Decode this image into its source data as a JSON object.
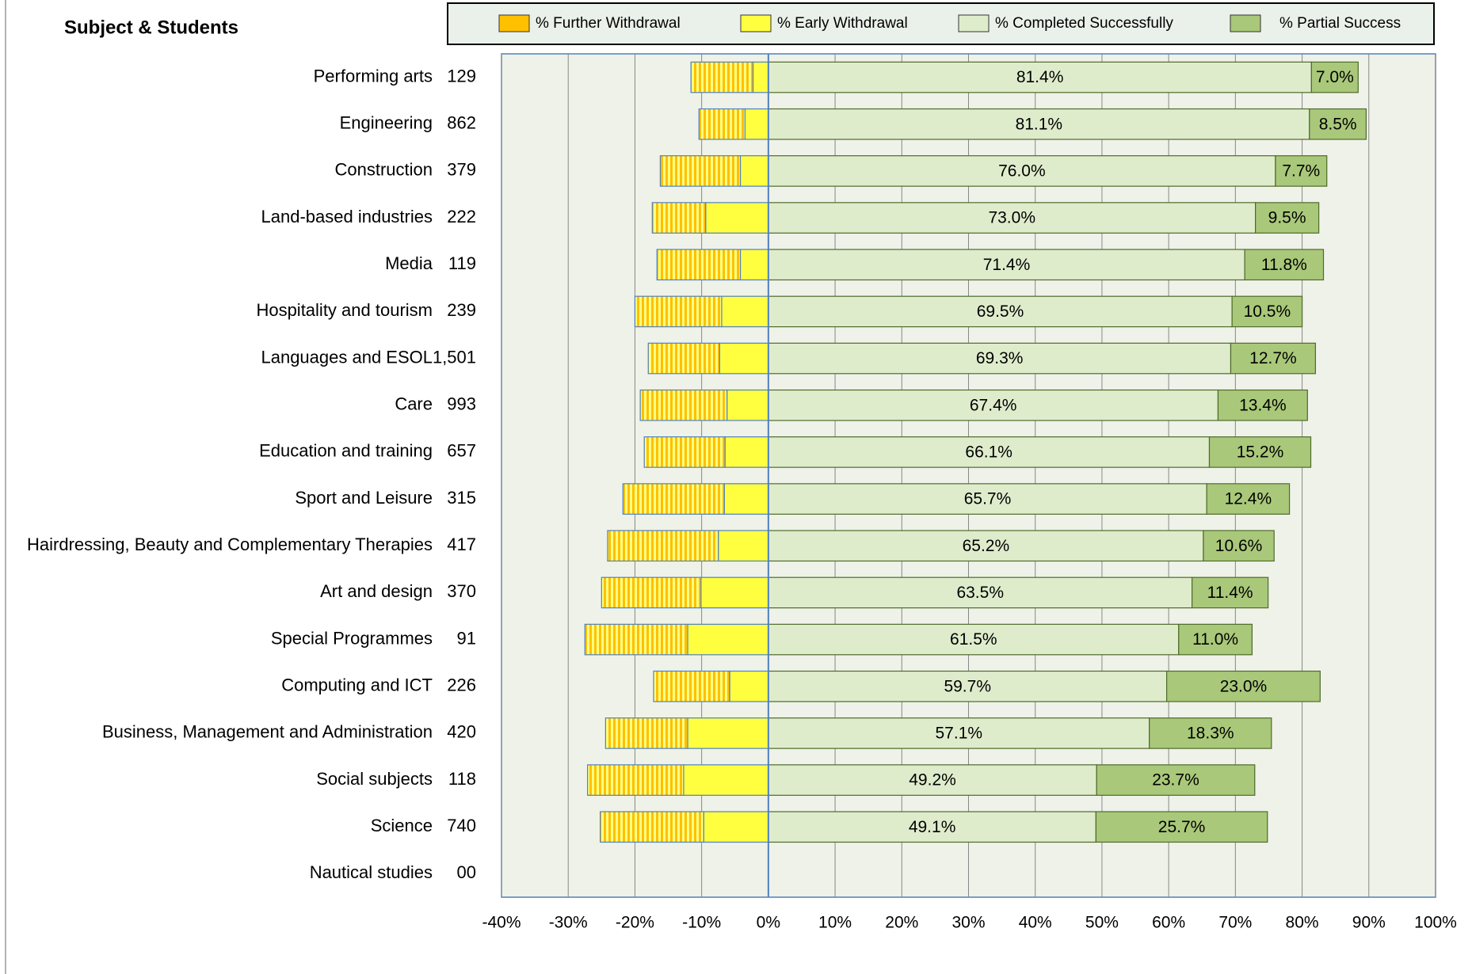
{
  "chart_data": {
    "type": "diverging_stacked_barh",
    "title": "Subject & Students",
    "categories": [
      "Performing arts",
      "Engineering",
      "Construction",
      "Land-based industries",
      "Media",
      "Hospitality and tourism",
      "Languages and ESOL",
      "Care",
      "Education and training",
      "Sport and Leisure",
      "Hairdressing, Beauty and Complementary Therapies",
      "Art and design",
      "Special Programmes",
      "Computing and ICT",
      "Business, Management and Administration",
      "Social subjects",
      "Science",
      "Nautical studies"
    ],
    "students": [
      "129",
      "862",
      "379",
      "222",
      "119",
      "239",
      "1,501",
      "993",
      "657",
      "315",
      "417",
      "370",
      "91",
      "226",
      "420",
      "118",
      "740",
      "00"
    ],
    "series": [
      {
        "name": "% Further Withdrawal",
        "color": "#ffc000",
        "values": [
          -9.3,
          -6.9,
          -12.0,
          -8.0,
          -12.5,
          -13.0,
          -10.7,
          -13.0,
          -12.1,
          -15.2,
          -16.6,
          -14.9,
          -15.4,
          -11.4,
          -12.3,
          -14.4,
          -15.5,
          null
        ]
      },
      {
        "name": "% Early Withdrawal",
        "color": "#ffff40",
        "values": [
          -2.3,
          -3.5,
          -4.2,
          -9.4,
          -4.2,
          -7.0,
          -7.3,
          -6.2,
          -6.5,
          -6.6,
          -7.5,
          -10.1,
          -12.1,
          -5.8,
          -12.1,
          -12.7,
          -9.7,
          null
        ]
      },
      {
        "name": "% Completed Successfully",
        "color": "#dfeccc",
        "values": [
          81.4,
          81.1,
          76.0,
          73.0,
          71.4,
          69.5,
          69.3,
          67.4,
          66.1,
          65.7,
          65.2,
          63.5,
          61.5,
          59.7,
          57.1,
          49.2,
          49.1,
          null
        ],
        "value_labels": [
          "81.4%",
          "81.1%",
          "76.0%",
          "73.0%",
          "71.4%",
          "69.5%",
          "69.3%",
          "67.4%",
          "66.1%",
          "65.7%",
          "65.2%",
          "63.5%",
          "61.5%",
          "59.7%",
          "57.1%",
          "49.2%",
          "49.1%",
          null
        ]
      },
      {
        "name": "% Partial Success",
        "color": "#a9c87a",
        "values": [
          7.0,
          8.5,
          7.7,
          9.5,
          11.8,
          10.5,
          12.7,
          13.4,
          15.2,
          12.4,
          10.6,
          11.4,
          11.0,
          23.0,
          18.3,
          23.7,
          25.7,
          null
        ],
        "value_labels": [
          "7.0%",
          "8.5%",
          "7.7%",
          "9.5%",
          "11.8%",
          "10.5%",
          "12.7%",
          "13.4%",
          "15.2%",
          "12.4%",
          "10.6%",
          "11.4%",
          "11.0%",
          "23.0%",
          "18.3%",
          "23.7%",
          "25.7%",
          null
        ]
      }
    ],
    "xlim": [
      -40,
      100
    ],
    "xticks": [
      {
        "value": -40,
        "label": "-40%"
      },
      {
        "value": -30,
        "label": "-30%"
      },
      {
        "value": -20,
        "label": "-20%"
      },
      {
        "value": -10,
        "label": "-10%"
      },
      {
        "value": 0,
        "label": "0%"
      },
      {
        "value": 10,
        "label": "10%"
      },
      {
        "value": 20,
        "label": "20%"
      },
      {
        "value": 30,
        "label": "30%"
      },
      {
        "value": 40,
        "label": "40%"
      },
      {
        "value": 50,
        "label": "50%"
      },
      {
        "value": 60,
        "label": "60%"
      },
      {
        "value": 70,
        "label": "70%"
      },
      {
        "value": 80,
        "label": "80%"
      },
      {
        "value": 90,
        "label": "90%"
      },
      {
        "value": 100,
        "label": "100%"
      }
    ],
    "grid": true,
    "legend": "top"
  }
}
